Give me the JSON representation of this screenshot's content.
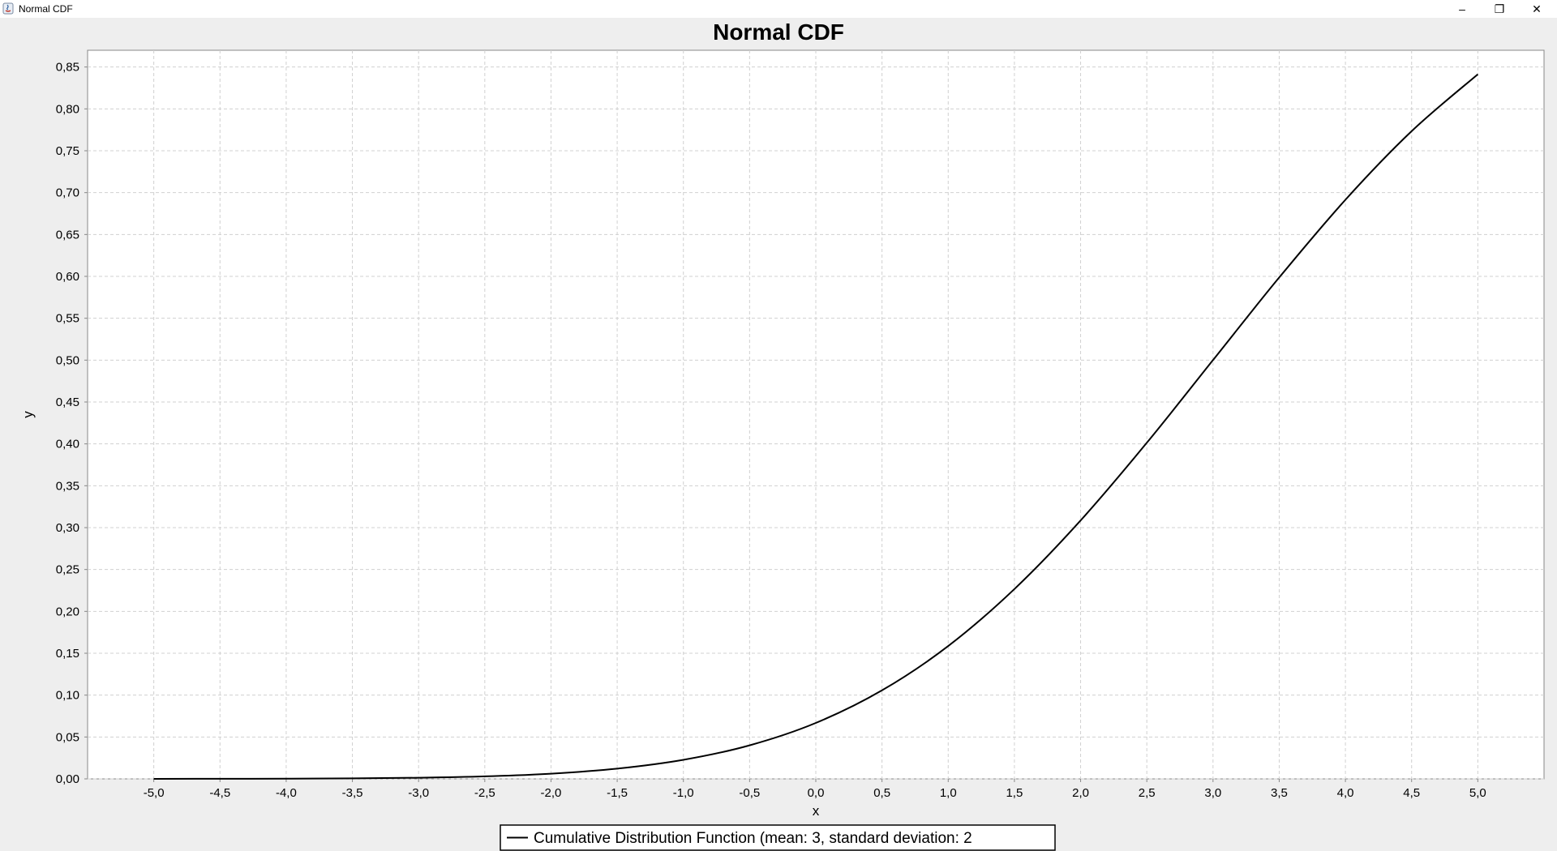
{
  "window": {
    "title": "Normal CDF",
    "controls": {
      "minimize": "–",
      "restore": "❐",
      "close": "✕"
    }
  },
  "chart_data": {
    "type": "line",
    "title": "Normal CDF",
    "xlabel": "x",
    "ylabel": "y",
    "xlim": [
      -5.5,
      5.5
    ],
    "ylim": [
      0,
      0.87
    ],
    "xticks": [
      -5.0,
      -4.5,
      -4.0,
      -3.5,
      -3.0,
      -2.5,
      -2.0,
      -1.5,
      -1.0,
      -0.5,
      0.0,
      0.5,
      1.0,
      1.5,
      2.0,
      2.5,
      3.0,
      3.5,
      4.0,
      4.5,
      5.0
    ],
    "xtick_labels": [
      "-5,0",
      "-4,5",
      "-4,0",
      "-3,5",
      "-3,0",
      "-2,5",
      "-2,0",
      "-1,5",
      "-1,0",
      "-0,5",
      "0,0",
      "0,5",
      "1,0",
      "1,5",
      "2,0",
      "2,5",
      "3,0",
      "3,5",
      "4,0",
      "4,5",
      "5,0"
    ],
    "yticks": [
      0,
      0.05,
      0.1,
      0.15,
      0.2,
      0.25,
      0.3,
      0.35,
      0.4,
      0.45,
      0.5,
      0.55,
      0.6,
      0.65,
      0.7,
      0.75,
      0.8,
      0.85
    ],
    "ytick_labels": [
      "0,00",
      "0,05",
      "0,10",
      "0,15",
      "0,20",
      "0,25",
      "0,30",
      "0,35",
      "0,40",
      "0,45",
      "0,50",
      "0,55",
      "0,60",
      "0,65",
      "0,70",
      "0,75",
      "0,80",
      "0,85"
    ],
    "grid": true,
    "legend_position": "bottom-center",
    "series": [
      {
        "name": "Cumulative Distribution Function (mean: 3, standard deviation: 2",
        "color": "#000000",
        "x": [
          -5.0,
          -4.5,
          -4.0,
          -3.5,
          -3.0,
          -2.5,
          -2.0,
          -1.5,
          -1.0,
          -0.5,
          0.0,
          0.5,
          1.0,
          1.5,
          2.0,
          2.5,
          3.0,
          3.5,
          4.0,
          4.5,
          5.0
        ],
        "y": [
          3e-05,
          9e-05,
          0.00023,
          0.00058,
          0.00135,
          0.00298,
          0.00621,
          0.01222,
          0.02275,
          0.04006,
          0.06681,
          0.10565,
          0.15866,
          0.22663,
          0.30854,
          0.40129,
          0.5,
          0.59871,
          0.69146,
          0.77337,
          0.84134
        ]
      }
    ]
  }
}
